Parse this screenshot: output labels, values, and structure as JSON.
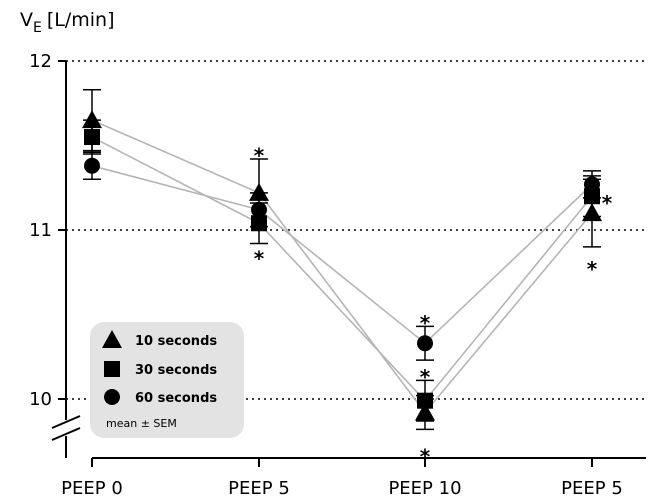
{
  "chart_data": {
    "type": "scatter",
    "ylabel_main": "V",
    "ylabel_sub": "E",
    "ylabel_unit": "[L/min]",
    "categories": [
      "PEEP 0",
      "PEEP 5",
      "PEEP 10",
      "PEEP 5"
    ],
    "ylim": [
      9.75,
      12
    ],
    "yticks": [
      10,
      11,
      12
    ],
    "grid": true,
    "series": [
      {
        "name": "10 seconds",
        "marker": "triangle",
        "values": [
          11.65,
          11.22,
          9.92,
          11.1
        ],
        "sem": [
          0.18,
          0.2,
          0.1,
          0.2
        ]
      },
      {
        "name": "30 seconds",
        "marker": "square",
        "values": [
          11.55,
          11.04,
          9.99,
          11.2
        ],
        "sem": [
          0.1,
          0.12,
          0.12,
          0.12
        ]
      },
      {
        "name": "60 seconds",
        "marker": "circle",
        "values": [
          11.38,
          11.12,
          10.33,
          11.27
        ],
        "sem": [
          0.08,
          0.1,
          0.1,
          0.08
        ]
      }
    ],
    "significance": [
      {
        "category": 1,
        "value": 11.47,
        "text": "*"
      },
      {
        "category": 1,
        "value": 10.86,
        "text": "*"
      },
      {
        "category": 2,
        "value": 10.48,
        "text": "*"
      },
      {
        "category": 2,
        "value": 10.16,
        "text": "*"
      },
      {
        "category": 2,
        "value": 9.69,
        "text": "*"
      },
      {
        "category": 3,
        "value": 11.19,
        "text": "*",
        "side": "right"
      },
      {
        "category": 3,
        "value": 10.8,
        "text": "*"
      }
    ],
    "legend_note": "mean ± SEM",
    "legend_position": "bottom-left"
  }
}
